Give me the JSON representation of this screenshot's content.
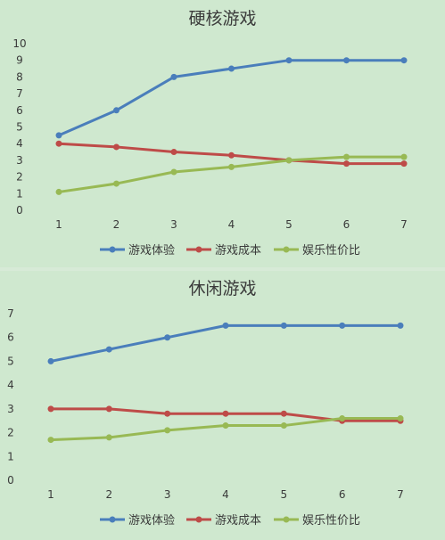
{
  "chart_data": [
    {
      "type": "line",
      "title": "硬核游戏",
      "categories": [
        "1",
        "2",
        "3",
        "4",
        "5",
        "6",
        "7"
      ],
      "ylim": [
        0,
        10
      ],
      "y_ticks": [
        0,
        1,
        2,
        3,
        4,
        5,
        6,
        7,
        8,
        9,
        10
      ],
      "grid": false,
      "legend": "bottom",
      "series": [
        {
          "name": "游戏体验",
          "color": "#4a7ebb",
          "values": [
            4.5,
            6,
            8,
            8.5,
            9,
            9,
            9
          ]
        },
        {
          "name": "游戏成本",
          "color": "#be4b48",
          "values": [
            4.0,
            3.8,
            3.5,
            3.3,
            3.0,
            2.8,
            2.8
          ]
        },
        {
          "name": "娱乐性价比",
          "color": "#98b954",
          "values": [
            1.1,
            1.6,
            2.3,
            2.6,
            3.0,
            3.2,
            3.2
          ]
        }
      ]
    },
    {
      "type": "line",
      "title": "休闲游戏",
      "categories": [
        "1",
        "2",
        "3",
        "4",
        "5",
        "6",
        "7"
      ],
      "ylim": [
        0,
        7
      ],
      "y_ticks": [
        0,
        1,
        2,
        3,
        4,
        5,
        6,
        7
      ],
      "grid": false,
      "legend": "bottom",
      "series": [
        {
          "name": "游戏体验",
          "color": "#4a7ebb",
          "values": [
            5.0,
            5.5,
            6.0,
            6.5,
            6.5,
            6.5,
            6.5
          ]
        },
        {
          "name": "游戏成本",
          "color": "#be4b48",
          "values": [
            3.0,
            3.0,
            2.8,
            2.8,
            2.8,
            2.5,
            2.5
          ]
        },
        {
          "name": "娱乐性价比",
          "color": "#98b954",
          "values": [
            1.7,
            1.8,
            2.1,
            2.3,
            2.3,
            2.6,
            2.6
          ]
        }
      ]
    }
  ]
}
